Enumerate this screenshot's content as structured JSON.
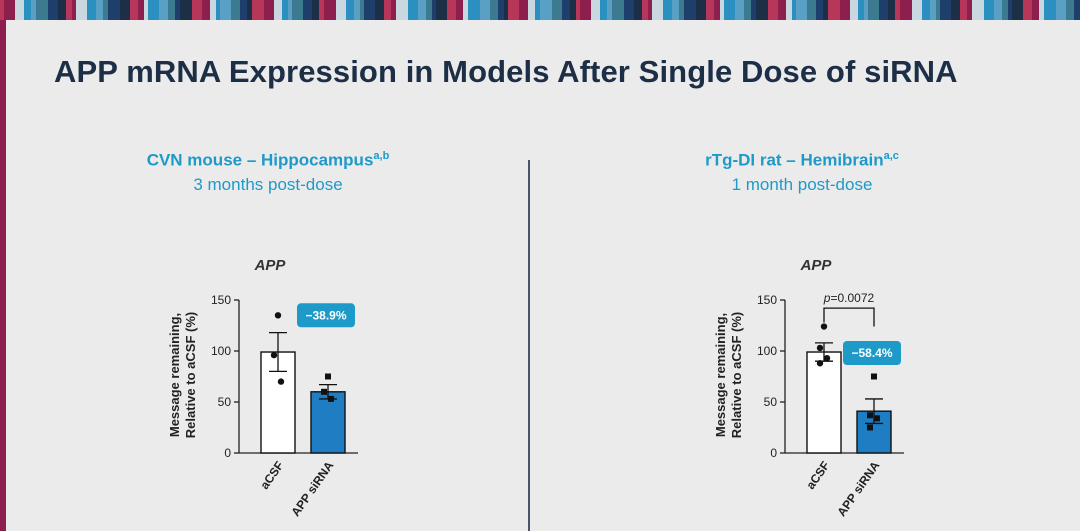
{
  "slide": {
    "title": "APP mRNA Expression in Models After Single Dose of siRNA"
  },
  "panels": [
    {
      "heading": "CVN mouse – Hippocampus",
      "heading_sup": "a,b",
      "subheading": "3 months post-dose"
    },
    {
      "heading": "rTg-DI rat – Hemibrain",
      "heading_sup": "a,c",
      "subheading": "1 month post-dose"
    }
  ],
  "colors": {
    "accent": "#1e9ac9",
    "bar_treated": "#1f7dc4",
    "title": "#1d2f47",
    "divider": "#46556a"
  },
  "chart_data": [
    {
      "type": "bar",
      "title": "APP",
      "ylabel_lines": [
        "Message remaining,",
        "Relative to aCSF (%)"
      ],
      "ylim": [
        0,
        150
      ],
      "yticks": [
        0,
        50,
        100,
        150
      ],
      "categories": [
        "aCSF",
        "APP siRNA"
      ],
      "values": [
        99,
        60
      ],
      "errors": [
        19,
        7
      ],
      "points": [
        [
          135,
          96,
          70
        ],
        [
          75,
          60,
          53
        ]
      ],
      "annotation": "−38.9%",
      "pvalue": null
    },
    {
      "type": "bar",
      "title": "APP",
      "ylabel_lines": [
        "Message remaining,",
        "Relative to aCSF (%)"
      ],
      "ylim": [
        0,
        150
      ],
      "yticks": [
        0,
        50,
        100,
        150
      ],
      "categories": [
        "aCSF",
        "APP siRNA"
      ],
      "values": [
        99,
        41
      ],
      "errors": [
        9,
        12
      ],
      "points": [
        [
          124,
          103,
          93,
          88
        ],
        [
          75,
          37,
          34,
          25
        ]
      ],
      "annotation": "−58.4%",
      "pvalue": "p=0.0072"
    }
  ]
}
